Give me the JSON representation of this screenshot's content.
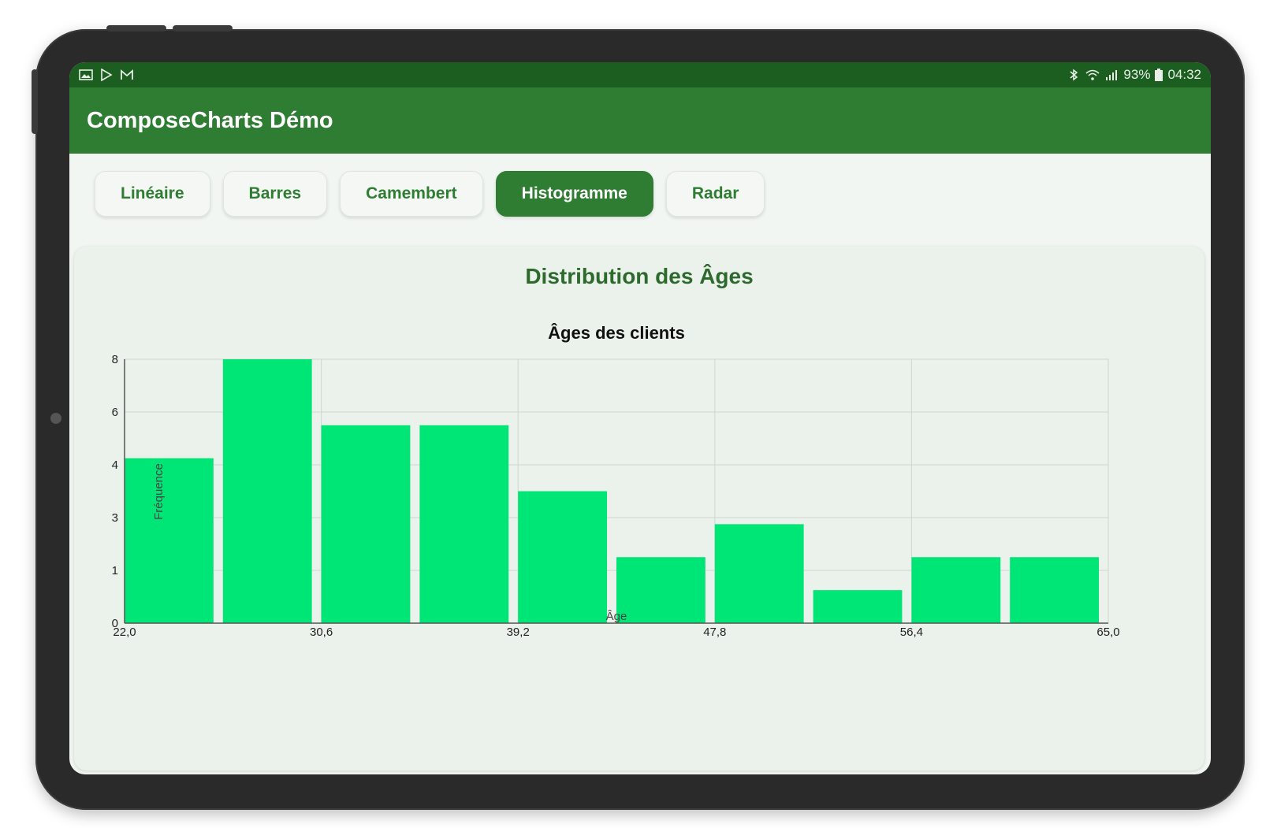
{
  "status_bar": {
    "left_icons": [
      "gallery-icon",
      "play-store-icon",
      "gmail-icon"
    ],
    "right_icons": [
      "bluetooth-icon",
      "wifi-icon",
      "signal-icon"
    ],
    "battery": "93%",
    "time": "04:32"
  },
  "app": {
    "title": "ComposeCharts Démo"
  },
  "tabs": [
    {
      "label": "Linéaire",
      "active": false
    },
    {
      "label": "Barres",
      "active": false
    },
    {
      "label": "Camembert",
      "active": false
    },
    {
      "label": "Histogramme",
      "active": true
    },
    {
      "label": "Radar",
      "active": false
    }
  ],
  "card": {
    "title": "Distribution des Âges"
  },
  "colors": {
    "primary": "#2e7d32",
    "status_bar": "#1b5e20",
    "bar": "#00e676"
  },
  "chart_data": {
    "type": "bar",
    "title": "Âges des clients",
    "xlabel": "Âge",
    "ylabel": "Fréquence",
    "bins": [
      {
        "start": 22.0,
        "end": 26.3,
        "value": 5
      },
      {
        "start": 26.3,
        "end": 30.6,
        "value": 8
      },
      {
        "start": 30.6,
        "end": 34.9,
        "value": 6
      },
      {
        "start": 34.9,
        "end": 39.2,
        "value": 6
      },
      {
        "start": 39.2,
        "end": 43.5,
        "value": 4
      },
      {
        "start": 43.5,
        "end": 47.8,
        "value": 2
      },
      {
        "start": 47.8,
        "end": 52.1,
        "value": 3
      },
      {
        "start": 52.1,
        "end": 56.4,
        "value": 1
      },
      {
        "start": 56.4,
        "end": 60.7,
        "value": 2
      },
      {
        "start": 60.7,
        "end": 65.0,
        "value": 2
      }
    ],
    "y_tick_labels": [
      "0",
      "1",
      "3",
      "4",
      "6",
      "8"
    ],
    "x_tick_labels": [
      "22,0",
      "30,6",
      "39,2",
      "47,8",
      "56,4",
      "65,0"
    ],
    "xlim": [
      22.0,
      65.0
    ],
    "ylim": [
      0,
      8
    ],
    "grid": true,
    "legend": "none"
  }
}
